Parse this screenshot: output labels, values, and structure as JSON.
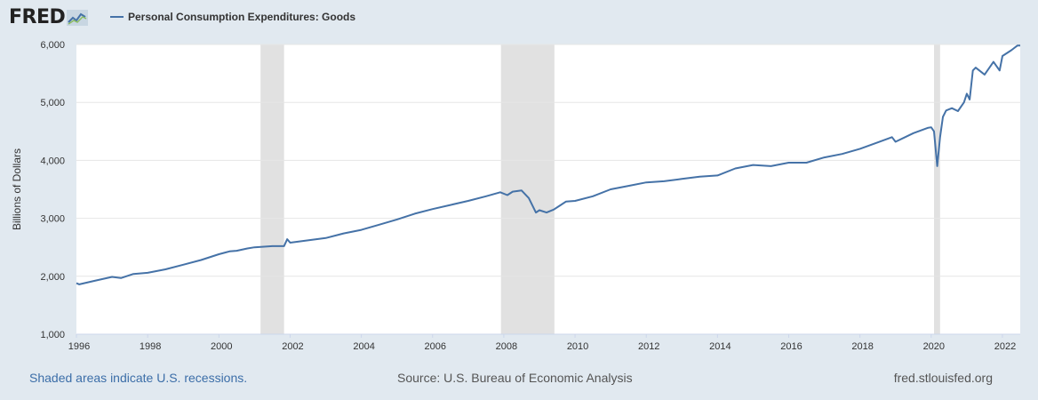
{
  "header": {
    "logo_text": "FRED",
    "logo_icon": "fred-chart-icon"
  },
  "colors": {
    "background": "#e1e9f0",
    "plot_background": "#ffffff",
    "series_line": "#4572a7",
    "recession_shade": "#e1e1e1",
    "link_text": "#3c6ea8"
  },
  "footer": {
    "recession_note": "Shaded areas indicate U.S. recessions.",
    "source": "Source: U.S. Bureau of Economic Analysis",
    "site": "fred.stlouisfed.org"
  },
  "chart_data": {
    "type": "line",
    "title": "",
    "xlabel": "",
    "ylabel": "Billions of Dollars",
    "xlim": [
      1996.0,
      2022.5
    ],
    "ylim": [
      1000,
      6000
    ],
    "x_ticks": [
      "1996",
      "1998",
      "2000",
      "2002",
      "2004",
      "2006",
      "2008",
      "2010",
      "2012",
      "2014",
      "2016",
      "2018",
      "2020",
      "2022"
    ],
    "y_ticks": [
      "1,000",
      "2,000",
      "3,000",
      "4,000",
      "5,000",
      "6,000"
    ],
    "grid": "horizontal",
    "legend": "top-left",
    "recessions": [
      [
        2001.17,
        2001.83
      ],
      [
        2007.92,
        2009.42
      ],
      [
        2020.08,
        2020.25
      ]
    ],
    "series": [
      {
        "name": "Personal Consumption Expenditures: Goods",
        "x": [
          1996.0,
          1996.08,
          1996.5,
          1997.0,
          1997.25,
          1997.6,
          1998.0,
          1998.5,
          1999.0,
          1999.5,
          2000.0,
          2000.3,
          2000.5,
          2000.8,
          2001.0,
          2001.5,
          2001.83,
          2001.92,
          2002.0,
          2002.5,
          2003.0,
          2003.5,
          2004.0,
          2004.5,
          2005.0,
          2005.5,
          2006.0,
          2006.5,
          2007.0,
          2007.5,
          2007.9,
          2008.1,
          2008.25,
          2008.5,
          2008.7,
          2008.9,
          2009.0,
          2009.2,
          2009.4,
          2009.6,
          2009.75,
          2010.0,
          2010.5,
          2011.0,
          2011.5,
          2012.0,
          2012.5,
          2013.0,
          2013.5,
          2014.0,
          2014.5,
          2015.0,
          2015.5,
          2016.0,
          2016.5,
          2017.0,
          2017.5,
          2018.0,
          2018.5,
          2018.9,
          2019.0,
          2019.5,
          2019.9,
          2020.0,
          2020.08,
          2020.17,
          2020.25,
          2020.33,
          2020.42,
          2020.58,
          2020.75,
          2020.92,
          2021.0,
          2021.08,
          2021.17,
          2021.25,
          2021.5,
          2021.75,
          2021.92,
          2022.0,
          2022.25,
          2022.42,
          2022.5
        ],
        "values": [
          1880,
          1860,
          1920,
          1990,
          1970,
          2040,
          2060,
          2120,
          2200,
          2280,
          2380,
          2430,
          2440,
          2480,
          2500,
          2520,
          2520,
          2640,
          2580,
          2620,
          2660,
          2740,
          2800,
          2890,
          2980,
          3080,
          3160,
          3230,
          3300,
          3380,
          3450,
          3400,
          3460,
          3480,
          3350,
          3100,
          3140,
          3100,
          3150,
          3230,
          3290,
          3300,
          3380,
          3500,
          3560,
          3620,
          3640,
          3680,
          3720,
          3740,
          3860,
          3920,
          3900,
          3960,
          3960,
          4050,
          4110,
          4200,
          4310,
          4400,
          4320,
          4470,
          4560,
          4570,
          4500,
          3900,
          4400,
          4750,
          4860,
          4900,
          4850,
          5000,
          5150,
          5050,
          5550,
          5600,
          5480,
          5700,
          5550,
          5800,
          5900,
          5980,
          5980
        ]
      }
    ]
  }
}
